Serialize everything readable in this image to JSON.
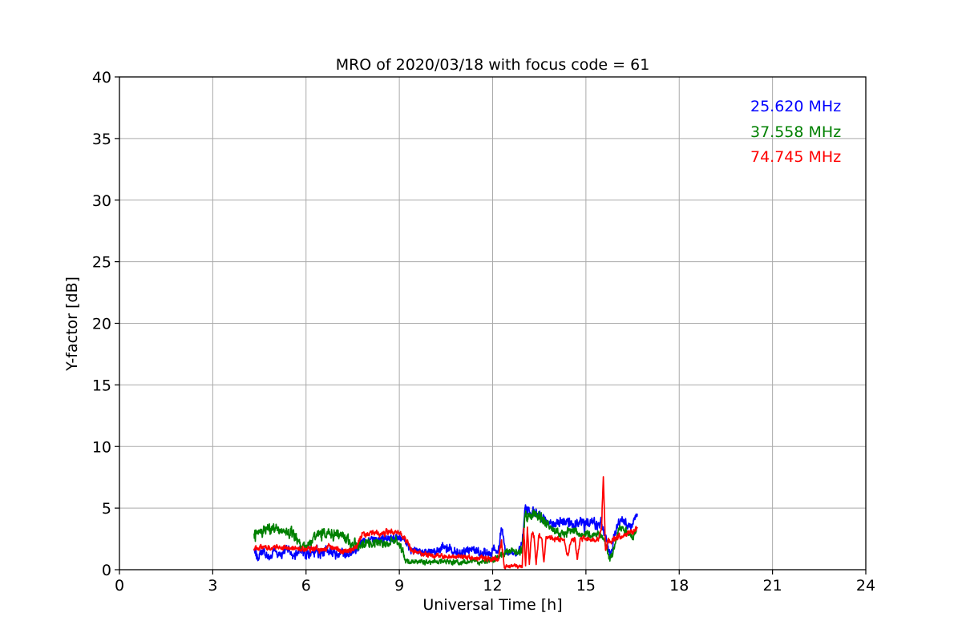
{
  "chart_data": {
    "type": "line",
    "title": "MRO of 2020/03/18 with focus code = 61",
    "xlabel": "Universal Time [h]",
    "ylabel": "Y-factor [dB]",
    "xlim": [
      0,
      24
    ],
    "ylim": [
      0,
      40
    ],
    "xticks": [
      0,
      3,
      6,
      9,
      12,
      15,
      18,
      21,
      24
    ],
    "yticks": [
      0,
      5,
      10,
      15,
      20,
      25,
      30,
      35,
      40
    ],
    "grid": true,
    "grid_color": "#aaaaaa",
    "spine_color": "#000000",
    "legend_position": "upper right",
    "points_format": "[hour, y_center_dB, noise_amplitude_dB]",
    "series": [
      {
        "name": "25.620 MHz",
        "color": "#0000ff",
        "points": [
          [
            4.33,
            1.6,
            0.45
          ],
          [
            4.45,
            1.0,
            0.3
          ],
          [
            4.6,
            1.7,
            0.35
          ],
          [
            4.8,
            1.0,
            0.3
          ],
          [
            5.0,
            1.7,
            0.35
          ],
          [
            5.2,
            1.0,
            0.3
          ],
          [
            5.4,
            1.8,
            0.35
          ],
          [
            5.6,
            1.0,
            0.3
          ],
          [
            5.8,
            1.7,
            0.35
          ],
          [
            6.0,
            1.3,
            0.35
          ],
          [
            6.25,
            1.6,
            0.4
          ],
          [
            6.5,
            1.3,
            0.4
          ],
          [
            6.75,
            1.6,
            0.4
          ],
          [
            6.95,
            1.1,
            0.35
          ],
          [
            7.15,
            1.5,
            0.4
          ],
          [
            7.35,
            1.2,
            0.35
          ],
          [
            7.55,
            1.5,
            0.4
          ],
          [
            7.8,
            2.4,
            0.35
          ],
          [
            8.1,
            2.5,
            0.3
          ],
          [
            8.4,
            2.3,
            0.35
          ],
          [
            8.7,
            2.6,
            0.3
          ],
          [
            9.0,
            2.6,
            0.3
          ],
          [
            9.2,
            2.3,
            0.3
          ],
          [
            9.4,
            1.6,
            0.35
          ],
          [
            9.6,
            1.4,
            0.35
          ],
          [
            9.9,
            1.5,
            0.35
          ],
          [
            10.2,
            1.4,
            0.35
          ],
          [
            10.4,
            1.8,
            0.35
          ],
          [
            10.7,
            1.5,
            0.4
          ],
          [
            11.0,
            1.3,
            0.35
          ],
          [
            11.3,
            1.6,
            0.35
          ],
          [
            11.6,
            1.3,
            0.35
          ],
          [
            11.85,
            1.3,
            0.35
          ],
          [
            12.05,
            1.6,
            0.4
          ],
          [
            12.2,
            1.6,
            0.35
          ],
          [
            12.3,
            3.5,
            0.4
          ],
          [
            12.42,
            1.4,
            0.3
          ],
          [
            12.6,
            1.3,
            0.25
          ],
          [
            12.8,
            1.3,
            0.25
          ],
          [
            12.95,
            2.2,
            0.35
          ],
          [
            13.05,
            4.9,
            0.4
          ],
          [
            13.2,
            4.4,
            0.4
          ],
          [
            13.35,
            4.7,
            0.4
          ],
          [
            13.5,
            4.3,
            0.4
          ],
          [
            13.7,
            4.0,
            0.4
          ],
          [
            13.9,
            3.6,
            0.4
          ],
          [
            14.1,
            3.8,
            0.4
          ],
          [
            14.35,
            3.9,
            0.4
          ],
          [
            14.55,
            3.6,
            0.4
          ],
          [
            14.75,
            3.9,
            0.4
          ],
          [
            14.95,
            3.7,
            0.4
          ],
          [
            15.15,
            3.9,
            0.4
          ],
          [
            15.35,
            3.6,
            0.4
          ],
          [
            15.5,
            3.8,
            0.35
          ],
          [
            15.65,
            2.4,
            0.4
          ],
          [
            15.8,
            1.1,
            0.3
          ],
          [
            15.95,
            3.3,
            0.4
          ],
          [
            16.1,
            4.0,
            0.35
          ],
          [
            16.3,
            3.8,
            0.35
          ],
          [
            16.45,
            3.5,
            0.3
          ],
          [
            16.55,
            4.2,
            0.3
          ],
          [
            16.65,
            4.5,
            0.25
          ]
        ]
      },
      {
        "name": "37.558 MHz",
        "color": "#008000",
        "points": [
          [
            4.33,
            3.0,
            0.5
          ],
          [
            4.6,
            3.1,
            0.5
          ],
          [
            4.9,
            3.2,
            0.45
          ],
          [
            5.2,
            3.1,
            0.45
          ],
          [
            5.5,
            3.0,
            0.45
          ],
          [
            5.7,
            2.7,
            0.4
          ],
          [
            5.85,
            2.0,
            0.3
          ],
          [
            6.05,
            1.9,
            0.3
          ],
          [
            6.3,
            2.8,
            0.45
          ],
          [
            6.6,
            3.0,
            0.45
          ],
          [
            6.9,
            2.9,
            0.45
          ],
          [
            7.15,
            2.8,
            0.4
          ],
          [
            7.4,
            2.3,
            0.4
          ],
          [
            7.7,
            2.0,
            0.35
          ],
          [
            8.0,
            2.1,
            0.35
          ],
          [
            8.3,
            2.3,
            0.4
          ],
          [
            8.6,
            2.2,
            0.35
          ],
          [
            8.85,
            2.4,
            0.35
          ],
          [
            9.05,
            1.9,
            0.35
          ],
          [
            9.25,
            0.5,
            0.25
          ],
          [
            9.5,
            0.7,
            0.2
          ],
          [
            9.8,
            0.6,
            0.2
          ],
          [
            10.1,
            0.7,
            0.2
          ],
          [
            10.5,
            0.6,
            0.2
          ],
          [
            10.9,
            0.6,
            0.2
          ],
          [
            11.3,
            0.7,
            0.2
          ],
          [
            11.7,
            0.7,
            0.2
          ],
          [
            12.0,
            0.8,
            0.25
          ],
          [
            12.2,
            1.0,
            0.25
          ],
          [
            12.4,
            1.4,
            0.25
          ],
          [
            12.6,
            1.5,
            0.25
          ],
          [
            12.8,
            1.4,
            0.25
          ],
          [
            12.95,
            1.6,
            0.3
          ],
          [
            13.05,
            4.6,
            0.5
          ],
          [
            13.2,
            4.3,
            0.45
          ],
          [
            13.35,
            4.7,
            0.4
          ],
          [
            13.5,
            4.2,
            0.4
          ],
          [
            13.65,
            4.0,
            0.4
          ],
          [
            13.85,
            3.4,
            0.35
          ],
          [
            14.05,
            3.1,
            0.35
          ],
          [
            14.25,
            2.9,
            0.3
          ],
          [
            14.5,
            3.1,
            0.35
          ],
          [
            14.75,
            3.0,
            0.35
          ],
          [
            15.0,
            2.9,
            0.3
          ],
          [
            15.25,
            2.8,
            0.3
          ],
          [
            15.45,
            2.9,
            0.3
          ],
          [
            15.6,
            2.3,
            0.35
          ],
          [
            15.78,
            0.7,
            0.3
          ],
          [
            15.92,
            1.9,
            0.35
          ],
          [
            16.05,
            3.3,
            0.3
          ],
          [
            16.25,
            3.3,
            0.3
          ],
          [
            16.4,
            2.9,
            0.25
          ],
          [
            16.5,
            2.6,
            0.25
          ],
          [
            16.62,
            3.2,
            0.25
          ]
        ]
      },
      {
        "name": "74.745 MHz",
        "color": "#ff0000",
        "points": [
          [
            4.33,
            1.8,
            0.2
          ],
          [
            4.7,
            1.8,
            0.2
          ],
          [
            5.1,
            1.8,
            0.2
          ],
          [
            5.5,
            1.75,
            0.2
          ],
          [
            5.9,
            1.7,
            0.2
          ],
          [
            6.2,
            1.8,
            0.25
          ],
          [
            6.5,
            1.6,
            0.25
          ],
          [
            6.8,
            1.8,
            0.25
          ],
          [
            7.1,
            1.6,
            0.25
          ],
          [
            7.4,
            1.5,
            0.2
          ],
          [
            7.6,
            1.8,
            0.25
          ],
          [
            7.8,
            2.9,
            0.25
          ],
          [
            8.1,
            3.0,
            0.2
          ],
          [
            8.4,
            2.9,
            0.25
          ],
          [
            8.7,
            3.1,
            0.2
          ],
          [
            9.0,
            3.0,
            0.2
          ],
          [
            9.2,
            2.5,
            0.25
          ],
          [
            9.4,
            1.5,
            0.2
          ],
          [
            9.7,
            1.3,
            0.2
          ],
          [
            10.0,
            1.2,
            0.2
          ],
          [
            10.4,
            1.1,
            0.18
          ],
          [
            10.8,
            1.0,
            0.18
          ],
          [
            11.2,
            1.0,
            0.18
          ],
          [
            11.6,
            0.95,
            0.18
          ],
          [
            12.0,
            0.9,
            0.2
          ],
          [
            12.2,
            1.0,
            0.25
          ],
          [
            12.28,
            2.4,
            0.3
          ],
          [
            12.38,
            0.3,
            0.15
          ],
          [
            12.55,
            0.25,
            0.12
          ],
          [
            12.7,
            0.3,
            0.15
          ],
          [
            12.85,
            0.2,
            0.12
          ],
          [
            12.95,
            0.3,
            0.15
          ],
          [
            13.0,
            3.3,
            0.25
          ],
          [
            13.06,
            0.3,
            0.15
          ],
          [
            13.12,
            3.4,
            0.25
          ],
          [
            13.18,
            0.4,
            0.15
          ],
          [
            13.26,
            3.0,
            0.25
          ],
          [
            13.33,
            2.7,
            0.25
          ],
          [
            13.4,
            0.4,
            0.15
          ],
          [
            13.48,
            2.7,
            0.25
          ],
          [
            13.58,
            2.6,
            0.2
          ],
          [
            13.65,
            0.5,
            0.15
          ],
          [
            13.72,
            2.7,
            0.2
          ],
          [
            13.9,
            2.5,
            0.2
          ],
          [
            14.1,
            2.5,
            0.2
          ],
          [
            14.3,
            2.4,
            0.2
          ],
          [
            14.42,
            1.1,
            0.15
          ],
          [
            14.52,
            2.4,
            0.18
          ],
          [
            14.65,
            2.4,
            0.18
          ],
          [
            14.72,
            0.9,
            0.15
          ],
          [
            14.82,
            2.5,
            0.18
          ],
          [
            15.0,
            2.5,
            0.18
          ],
          [
            15.2,
            2.4,
            0.18
          ],
          [
            15.4,
            2.5,
            0.2
          ],
          [
            15.5,
            3.2,
            0.25
          ],
          [
            15.56,
            7.5,
            0.15
          ],
          [
            15.63,
            1.6,
            0.25
          ],
          [
            15.72,
            2.3,
            0.25
          ],
          [
            15.85,
            2.3,
            0.2
          ],
          [
            16.0,
            2.6,
            0.2
          ],
          [
            16.15,
            2.8,
            0.2
          ],
          [
            16.3,
            2.9,
            0.2
          ],
          [
            16.45,
            3.0,
            0.2
          ],
          [
            16.55,
            3.1,
            0.25
          ],
          [
            16.65,
            3.4,
            0.25
          ]
        ]
      }
    ]
  }
}
